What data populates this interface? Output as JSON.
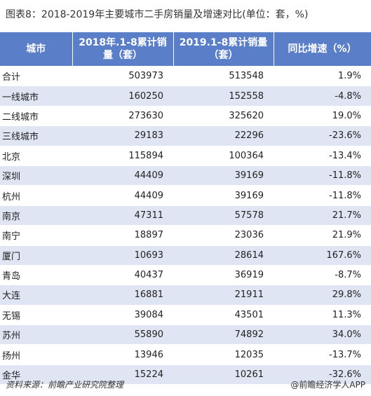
{
  "header": {
    "title": "图表8：2018-2019年主要城市二手房销量及增速对比(单位：套，%)"
  },
  "table": {
    "columns": [
      "城市",
      "2018年.1-8累计销量（套）",
      "2019.1-8累计销量（套）",
      "同比增速（%）"
    ],
    "rows": [
      [
        "合计",
        "503973",
        "513548",
        "1.9%"
      ],
      [
        "一线城市",
        "160250",
        "152558",
        "-4.8%"
      ],
      [
        "二线城市",
        "273630",
        "325620",
        "19.0%"
      ],
      [
        "三线城市",
        "29183",
        "22296",
        "-23.6%"
      ],
      [
        "北京",
        "115894",
        "100364",
        "-13.4%"
      ],
      [
        "深圳",
        "44409",
        "39169",
        "-11.8%"
      ],
      [
        "杭州",
        "44409",
        "39169",
        "-11.8%"
      ],
      [
        "南京",
        "47311",
        "57578",
        "21.7%"
      ],
      [
        "南宁",
        "18897",
        "23036",
        "21.9%"
      ],
      [
        "厦门",
        "10693",
        "28614",
        "167.6%"
      ],
      [
        "青岛",
        "40437",
        "36919",
        "-8.7%"
      ],
      [
        "大连",
        "16881",
        "21911",
        "29.8%"
      ],
      [
        "无锡",
        "39084",
        "43501",
        "11.3%"
      ],
      [
        "苏州",
        "55890",
        "74892",
        "34.0%"
      ],
      [
        "扬州",
        "13946",
        "12035",
        "-13.7%"
      ],
      [
        "金华",
        "15224",
        "10261",
        "-32.6%"
      ]
    ]
  },
  "footer": {
    "source": "资料来源：前瞻产业研究院整理",
    "brand": "@前瞻经济学人APP"
  }
}
